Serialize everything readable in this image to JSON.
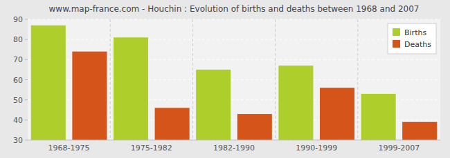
{
  "chart_data": {
    "type": "bar",
    "title": "www.map-france.com - Houchin : Evolution of births and deaths between 1968 and 2007",
    "categories": [
      "1968-1975",
      "1975-1982",
      "1982-1990",
      "1990-1999",
      "1999-2007"
    ],
    "series": [
      {
        "name": "Births",
        "color": "#aece2b",
        "values": [
          87,
          81,
          65,
          67,
          53
        ]
      },
      {
        "name": "Deaths",
        "color": "#d4541a",
        "values": [
          74,
          46,
          43,
          56,
          39
        ]
      }
    ],
    "ylim": [
      30,
      90
    ],
    "yticks": [
      30,
      40,
      50,
      60,
      70,
      80,
      90
    ],
    "grid": true,
    "legend": "upper right"
  }
}
